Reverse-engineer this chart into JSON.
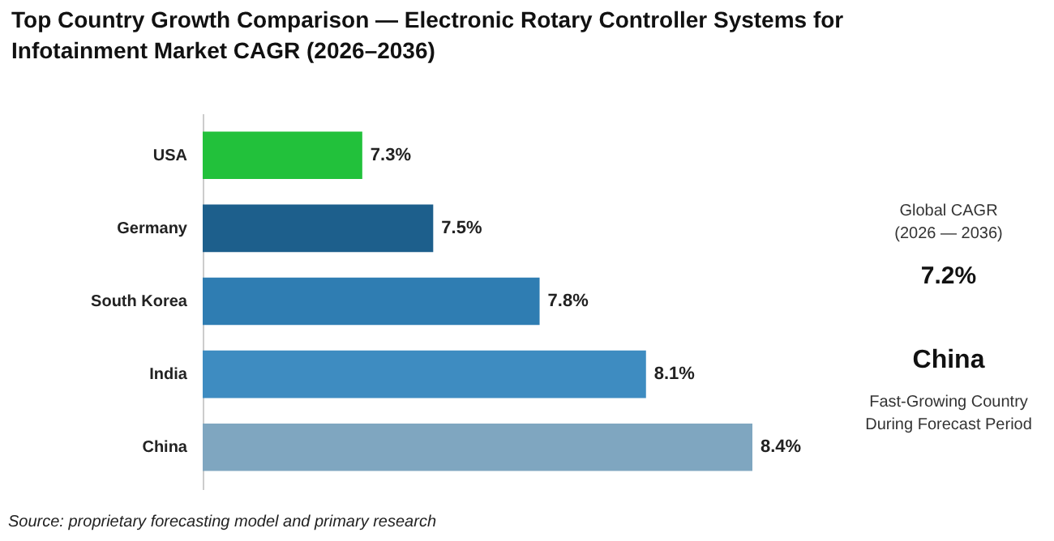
{
  "chart_data": {
    "type": "bar",
    "orientation": "horizontal",
    "title": "Top Country Growth Comparison — Electronic Rotary Controller Systems for Infotainment Market CAGR (2026–2036)",
    "categories": [
      "USA",
      "Germany",
      "South Korea",
      "India",
      "China"
    ],
    "values": [
      7.3,
      7.5,
      7.8,
      8.1,
      8.4
    ],
    "colors": [
      "#22c13b",
      "#1d5f8c",
      "#2f7db2",
      "#3e8cc1",
      "#7fa6c0"
    ],
    "value_labels": [
      "7.3%",
      "7.5%",
      "7.8%",
      "8.1%",
      "8.4%"
    ],
    "xlim": [
      6.85,
      8.4
    ],
    "tick_labels": "y",
    "grid": false,
    "annotations": [
      "Source: proprietary forecasting model and primary research",
      "Global CAGR",
      "(2026 — 2036)",
      "7.2%",
      "China",
      "Fast-Growing Country",
      "During Forecast Period"
    ]
  }
}
